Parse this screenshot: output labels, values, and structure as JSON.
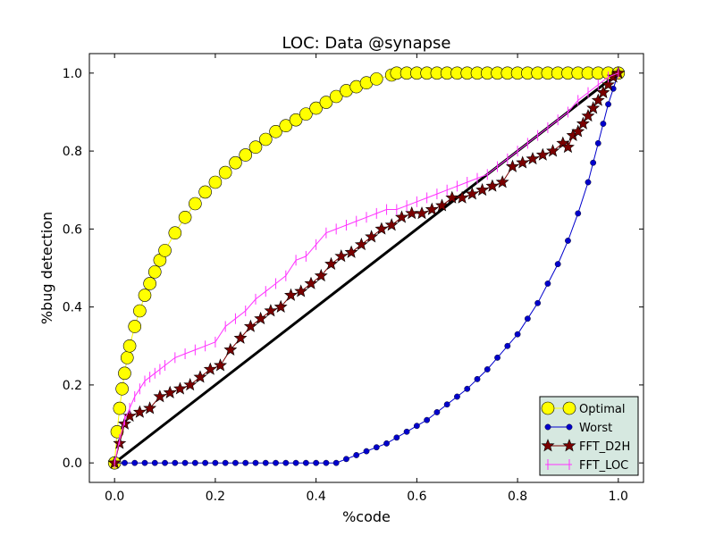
{
  "chart_data": {
    "type": "line",
    "title": "LOC: Data @synapse",
    "xlabel": "%code",
    "ylabel": "%bug detection",
    "xlim": [
      -0.05,
      1.05
    ],
    "ylim": [
      -0.05,
      1.05
    ],
    "xticks": [
      "0.0",
      "0.2",
      "0.4",
      "0.6",
      "0.8",
      "1.0"
    ],
    "yticks": [
      "0.0",
      "0.2",
      "0.4",
      "0.6",
      "0.8",
      "1.0"
    ],
    "grid": false,
    "legend_position": "lower-right",
    "colors": {
      "optimal": "#ffff00",
      "worst": "#0000cc",
      "fft_d2h": "#7a0000",
      "fft_loc": "#ff33ff",
      "diagonal": "#000000",
      "legend_bg": "#d6e8e0"
    },
    "series": [
      {
        "name": "Optimal",
        "marker": "circle",
        "x": [
          0,
          0.005,
          0.01,
          0.015,
          0.02,
          0.025,
          0.03,
          0.04,
          0.05,
          0.06,
          0.07,
          0.08,
          0.09,
          0.1,
          0.12,
          0.14,
          0.16,
          0.18,
          0.2,
          0.22,
          0.24,
          0.26,
          0.28,
          0.3,
          0.32,
          0.34,
          0.36,
          0.38,
          0.4,
          0.42,
          0.44,
          0.46,
          0.48,
          0.5,
          0.52,
          0.55,
          0.56,
          0.58,
          0.6,
          0.62,
          0.64,
          0.66,
          0.68,
          0.7,
          0.72,
          0.74,
          0.76,
          0.78,
          0.8,
          0.82,
          0.84,
          0.86,
          0.88,
          0.9,
          0.92,
          0.94,
          0.96,
          0.98,
          1.0
        ],
        "y": [
          0,
          0.08,
          0.14,
          0.19,
          0.23,
          0.27,
          0.3,
          0.35,
          0.39,
          0.43,
          0.46,
          0.49,
          0.52,
          0.545,
          0.59,
          0.63,
          0.665,
          0.695,
          0.72,
          0.745,
          0.77,
          0.79,
          0.81,
          0.83,
          0.85,
          0.865,
          0.88,
          0.895,
          0.91,
          0.925,
          0.94,
          0.955,
          0.965,
          0.975,
          0.985,
          0.995,
          1.0,
          1.0,
          1.0,
          1.0,
          1.0,
          1.0,
          1.0,
          1.0,
          1.0,
          1.0,
          1.0,
          1.0,
          1.0,
          1.0,
          1.0,
          1.0,
          1.0,
          1.0,
          1.0,
          1.0,
          1.0,
          1.0,
          1.0
        ]
      },
      {
        "name": "Worst",
        "marker": "dot",
        "x": [
          0,
          0.02,
          0.04,
          0.06,
          0.08,
          0.1,
          0.12,
          0.14,
          0.16,
          0.18,
          0.2,
          0.22,
          0.24,
          0.26,
          0.28,
          0.3,
          0.32,
          0.34,
          0.36,
          0.38,
          0.4,
          0.42,
          0.44,
          0.46,
          0.48,
          0.5,
          0.52,
          0.54,
          0.56,
          0.58,
          0.6,
          0.62,
          0.64,
          0.66,
          0.68,
          0.7,
          0.72,
          0.74,
          0.76,
          0.78,
          0.8,
          0.82,
          0.84,
          0.86,
          0.88,
          0.9,
          0.92,
          0.94,
          0.95,
          0.96,
          0.97,
          0.98,
          0.99,
          1.0
        ],
        "y": [
          0,
          0,
          0,
          0,
          0,
          0,
          0,
          0,
          0,
          0,
          0,
          0,
          0,
          0,
          0,
          0,
          0,
          0,
          0,
          0,
          0,
          0,
          0,
          0.01,
          0.02,
          0.03,
          0.04,
          0.05,
          0.065,
          0.08,
          0.095,
          0.11,
          0.13,
          0.15,
          0.17,
          0.19,
          0.215,
          0.24,
          0.27,
          0.3,
          0.33,
          0.37,
          0.41,
          0.46,
          0.51,
          0.57,
          0.64,
          0.72,
          0.77,
          0.82,
          0.87,
          0.92,
          0.96,
          1.0
        ]
      },
      {
        "name": "FFT_D2H",
        "marker": "star",
        "x": [
          0,
          0.01,
          0.02,
          0.03,
          0.05,
          0.07,
          0.09,
          0.11,
          0.13,
          0.15,
          0.17,
          0.19,
          0.21,
          0.23,
          0.25,
          0.27,
          0.29,
          0.31,
          0.33,
          0.35,
          0.37,
          0.39,
          0.41,
          0.43,
          0.45,
          0.47,
          0.49,
          0.51,
          0.53,
          0.55,
          0.57,
          0.59,
          0.61,
          0.63,
          0.65,
          0.67,
          0.69,
          0.71,
          0.73,
          0.75,
          0.77,
          0.79,
          0.81,
          0.83,
          0.85,
          0.87,
          0.89,
          0.9,
          0.91,
          0.92,
          0.93,
          0.94,
          0.95,
          0.96,
          0.97,
          0.98,
          0.99,
          1.0
        ],
        "y": [
          0,
          0.05,
          0.1,
          0.12,
          0.13,
          0.14,
          0.17,
          0.18,
          0.19,
          0.2,
          0.22,
          0.24,
          0.25,
          0.29,
          0.32,
          0.35,
          0.37,
          0.39,
          0.4,
          0.43,
          0.44,
          0.46,
          0.48,
          0.51,
          0.53,
          0.54,
          0.56,
          0.58,
          0.6,
          0.61,
          0.63,
          0.64,
          0.64,
          0.65,
          0.66,
          0.68,
          0.68,
          0.69,
          0.7,
          0.71,
          0.72,
          0.76,
          0.77,
          0.78,
          0.79,
          0.8,
          0.82,
          0.81,
          0.84,
          0.85,
          0.87,
          0.89,
          0.91,
          0.93,
          0.95,
          0.97,
          0.99,
          1.0
        ]
      },
      {
        "name": "FFT_LOC",
        "marker": "vline",
        "x": [
          0,
          0.01,
          0.02,
          0.03,
          0.04,
          0.05,
          0.06,
          0.07,
          0.08,
          0.09,
          0.1,
          0.12,
          0.14,
          0.16,
          0.18,
          0.2,
          0.22,
          0.24,
          0.26,
          0.28,
          0.3,
          0.32,
          0.34,
          0.36,
          0.38,
          0.4,
          0.42,
          0.44,
          0.46,
          0.48,
          0.5,
          0.52,
          0.54,
          0.56,
          0.58,
          0.6,
          0.62,
          0.64,
          0.66,
          0.68,
          0.7,
          0.72,
          0.74,
          0.76,
          0.78,
          0.8,
          0.82,
          0.84,
          0.86,
          0.88,
          0.9,
          0.92,
          0.94,
          0.96,
          0.98,
          1.0
        ],
        "y": [
          0,
          0.06,
          0.11,
          0.14,
          0.17,
          0.19,
          0.21,
          0.22,
          0.23,
          0.24,
          0.25,
          0.27,
          0.28,
          0.29,
          0.3,
          0.31,
          0.35,
          0.37,
          0.39,
          0.42,
          0.44,
          0.46,
          0.48,
          0.52,
          0.53,
          0.56,
          0.59,
          0.6,
          0.61,
          0.62,
          0.63,
          0.64,
          0.65,
          0.65,
          0.66,
          0.67,
          0.68,
          0.69,
          0.7,
          0.71,
          0.72,
          0.73,
          0.74,
          0.76,
          0.78,
          0.8,
          0.82,
          0.84,
          0.86,
          0.88,
          0.9,
          0.93,
          0.95,
          0.97,
          0.99,
          1.0
        ]
      }
    ],
    "reference_line": {
      "x": [
        0,
        1
      ],
      "y": [
        0,
        1
      ]
    }
  }
}
